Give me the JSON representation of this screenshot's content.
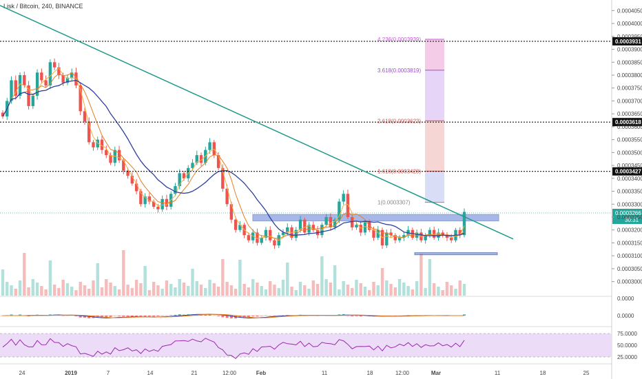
{
  "header": {
    "title": "Lisk / Bitcoin, 240, BINANCE"
  },
  "chart_data": {
    "type": "candlestick",
    "symbol": "Lisk / Bitcoin",
    "interval": "240",
    "exchange": "BINANCE",
    "ylim": [
      0.0002975,
      0.0004075
    ],
    "price_ticks": [
      "0.0004050",
      "0.0004000",
      "0.0003950",
      "0.0003900",
      "0.0003850",
      "0.0003800",
      "0.0003750",
      "0.0003700",
      "0.0003650",
      "0.0003600",
      "0.0003550",
      "0.0003500",
      "0.0003450",
      "0.0003400",
      "0.0003350",
      "0.0003300",
      "0.0003250",
      "0.0003200",
      "0.0003150",
      "0.0003100",
      "0.0003050",
      "0.0003000"
    ],
    "x_ticks": [
      "24",
      "2019",
      "7",
      "14",
      "21",
      "12:00",
      "Feb",
      "11",
      "18",
      "12:00",
      "Mar",
      "11",
      "18",
      "25"
    ],
    "horizontal_levels": [
      {
        "label": "0.0003931",
        "value": 0.0003931
      },
      {
        "label": "0.0003618",
        "value": 0.0003618
      },
      {
        "label": "0.0003427",
        "value": 0.0003427
      }
    ],
    "last_price": {
      "label": "0.0003266",
      "value": 0.0003266,
      "countdown": "30:31"
    },
    "fib_levels": [
      {
        "text": "4.236(0.0003939)",
        "value": 0.0003939,
        "color": "#c25bd1"
      },
      {
        "text": "3.618(0.0003819)",
        "value": 0.0003819,
        "color": "#9b4fc9"
      },
      {
        "text": "2.618(0.0003623)",
        "value": 0.0003623,
        "color": "#d9534f"
      },
      {
        "text": "1.618(0.0003428)",
        "value": 0.0003428,
        "color": "#d9534f"
      },
      {
        "text": "1(0.0003307)",
        "value": 0.0003307,
        "color": "#888888"
      }
    ],
    "trendline": {
      "start": [
        0,
        0.000407
      ],
      "end": [
        745,
        0.0003165
      ]
    },
    "support_zone": {
      "low": 0.0003235,
      "high": 0.000326
    },
    "support_zone_lower": {
      "low": 0.0003104,
      "high": 0.0003112
    },
    "close_series": [
      0.000364,
      0.00037,
      0.000378,
      0.000372,
      0.00038,
      0.000376,
      0.000368,
      0.000372,
      0.000381,
      0.000378,
      0.000376,
      0.000385,
      0.000383,
      0.00038,
      0.000377,
      0.000379,
      0.000381,
      0.000376,
      0.000366,
      0.000362,
      0.000354,
      0.000352,
      0.000355,
      0.000351,
      0.000349,
      0.000346,
      0.000351,
      0.000347,
      0.000343,
      0.000341,
      0.000338,
      0.000335,
      0.00033,
      0.000333,
      0.000331,
      0.000329,
      0.000328,
      0.000332,
      0.000329,
      0.000334,
      0.000337,
      0.000342,
      0.00034,
      0.000344,
      0.000346,
      0.000349,
      0.000346,
      0.000351,
      0.000354,
      0.000349,
      0.000344,
      0.000336,
      0.00033,
      0.000324,
      0.00032,
      0.000322,
      0.000318,
      0.000316,
      0.000319,
      0.000315,
      0.000317,
      0.00032,
      0.000316,
      0.000314,
      0.000318,
      0.000319,
      0.000321,
      0.000317,
      0.00032,
      0.000324,
      0.000319,
      0.000322,
      0.00032,
      0.000318,
      0.000322,
      0.000325,
      0.000321,
      0.000324,
      0.000331,
      0.000334,
      0.000325,
      0.000321,
      0.000322,
      0.000319,
      0.000323,
      0.00032,
      0.000317,
      0.00032,
      0.000314,
      0.000319,
      0.000318,
      0.000316,
      0.000317,
      0.000318,
      0.00032,
      0.000317,
      0.000319,
      0.000316,
      0.000318,
      0.00032,
      0.000317,
      0.000319,
      0.000318,
      0.000317,
      0.000316,
      0.00032,
      0.000318,
      0.000327
    ],
    "rsi_ticks": [
      "75.0000",
      "50.0000",
      "25.0000"
    ],
    "macd_ticks": [
      "0.0000",
      "0.0000"
    ]
  }
}
